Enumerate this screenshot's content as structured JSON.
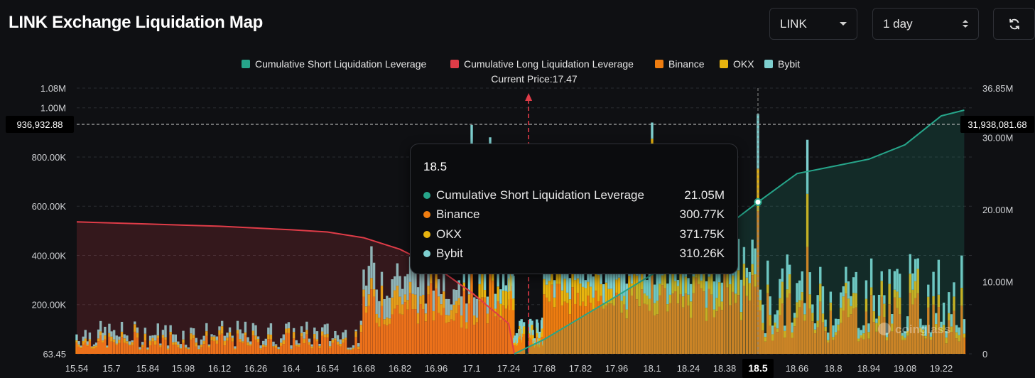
{
  "header": {
    "title": "LINK Exchange Liquidation Map",
    "coin_select": "LINK",
    "range_select": "1 day",
    "refresh_icon": "refresh-icon"
  },
  "colors": {
    "short": "#26a58a",
    "long": "#e03c48",
    "binance": "#ef7d10",
    "okx": "#e8b40f",
    "bybit": "#7ecfcf",
    "background": "#0f1013"
  },
  "chart_data": {
    "type": "bar",
    "legend": [
      {
        "name": "Cumulative Short Liquidation Leverage",
        "color": "#26a58a"
      },
      {
        "name": "Cumulative Long Liquidation Leverage",
        "color": "#e03c48"
      },
      {
        "name": "Binance",
        "color": "#ef7d10"
      },
      {
        "name": "OKX",
        "color": "#e8b40f"
      },
      {
        "name": "Bybit",
        "color": "#7ecfcf"
      }
    ],
    "legend_position": "top-center",
    "current_price_label": "Current Price:17.47",
    "current_price": 17.47,
    "x_ticks": [
      "15.54",
      "15.7",
      "15.84",
      "15.98",
      "16.12",
      "16.26",
      "16.4",
      "16.54",
      "16.68",
      "16.82",
      "16.96",
      "17.1",
      "17.24",
      "17.68",
      "17.82",
      "17.96",
      "18.1",
      "18.24",
      "18.38",
      "18.5",
      "18.66",
      "18.8",
      "18.94",
      "19.08",
      "19.22"
    ],
    "y_left_ticks": [
      "63.45",
      "200.00K",
      "400.00K",
      "600.00K",
      "800.00K",
      "1.00M",
      "1.08M"
    ],
    "y_left_range": [
      63.45,
      1080000
    ],
    "y_right_ticks": [
      "0",
      "10.00M",
      "20.00M",
      "30.00M",
      "36.85M"
    ],
    "y_right_range": [
      0,
      36850000
    ],
    "crosshair": {
      "left_label": "936,932.88",
      "right_label": "31,938,081.68",
      "x_label": "18.5"
    },
    "bar_series": [
      "Binance",
      "OKX",
      "Bybit"
    ],
    "tooltip": {
      "title": "18.5",
      "rows": [
        {
          "label": "Cumulative Short Liquidation Leverage",
          "value": "21.05M",
          "color": "#26a58a"
        },
        {
          "label": "Binance",
          "value": "300.77K",
          "color": "#ef7d10"
        },
        {
          "label": "OKX",
          "value": "371.75K",
          "color": "#e8b40f"
        },
        {
          "label": "Bybit",
          "value": "310.26K",
          "color": "#7ecfcf"
        }
      ]
    },
    "long_cumulative": [
      [
        15.54,
        18300000
      ],
      [
        15.84,
        18000000
      ],
      [
        16.12,
        17700000
      ],
      [
        16.4,
        17200000
      ],
      [
        16.54,
        16900000
      ],
      [
        16.68,
        16100000
      ],
      [
        16.82,
        14500000
      ],
      [
        16.96,
        12000000
      ],
      [
        17.1,
        8500000
      ],
      [
        17.24,
        4200000
      ],
      [
        17.31,
        0
      ]
    ],
    "short_cumulative": [
      [
        17.31,
        0
      ],
      [
        17.68,
        2000000
      ],
      [
        17.82,
        5000000
      ],
      [
        17.96,
        8000000
      ],
      [
        18.1,
        11000000
      ],
      [
        18.24,
        14000000
      ],
      [
        18.38,
        17500000
      ],
      [
        18.5,
        21050000
      ],
      [
        18.66,
        25000000
      ],
      [
        18.8,
        26000000
      ],
      [
        18.94,
        27000000
      ],
      [
        19.08,
        29000000
      ],
      [
        19.22,
        33000000
      ],
      [
        19.31,
        33800000
      ]
    ]
  },
  "watermark": "coinglass"
}
